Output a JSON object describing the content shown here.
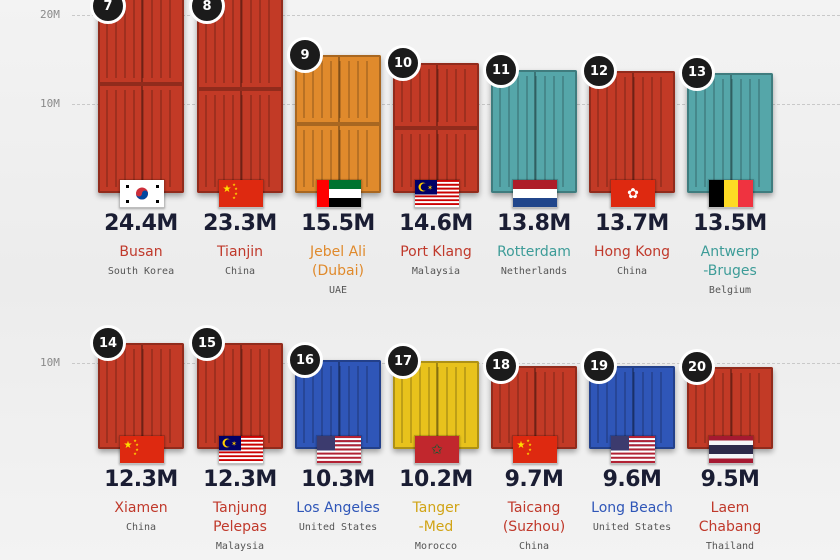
{
  "colors": {
    "red": "#c23a26",
    "orange": "#e08a2c",
    "teal": "#55a6a9",
    "blue": "#2f56b8",
    "yellow": "#e8c21c",
    "text_red": "#c0392b",
    "text_orange": "#e08a2c",
    "text_teal": "#3d9c98",
    "text_blue": "#2f56b8",
    "text_yellow": "#d1a416"
  },
  "chart_data": [
    {
      "type": "bar",
      "unit": "M",
      "ylim": [
        0,
        25
      ],
      "ticks": [
        {
          "value": 20,
          "label": "20M"
        },
        {
          "value": 10,
          "label": "10M"
        }
      ],
      "bars": [
        {
          "rank": "7",
          "value": 24.4,
          "value_label": "24.4M",
          "city": [
            "Busan"
          ],
          "country": "South Korea",
          "flag": "south-korea",
          "color": "red"
        },
        {
          "rank": "8",
          "value": 23.3,
          "value_label": "23.3M",
          "city": [
            "Tianjin"
          ],
          "country": "China",
          "flag": "china",
          "color": "red"
        },
        {
          "rank": "9",
          "value": 15.5,
          "value_label": "15.5M",
          "city": [
            "Jebel Ali",
            "(Dubai)"
          ],
          "country": "UAE",
          "flag": "uae",
          "color": "orange"
        },
        {
          "rank": "10",
          "value": 14.6,
          "value_label": "14.6M",
          "city": [
            "Port Klang"
          ],
          "country": "Malaysia",
          "flag": "malaysia",
          "color": "red"
        },
        {
          "rank": "11",
          "value": 13.8,
          "value_label": "13.8M",
          "city": [
            "Rotterdam"
          ],
          "country": "Netherlands",
          "flag": "netherlands",
          "color": "teal"
        },
        {
          "rank": "12",
          "value": 13.7,
          "value_label": "13.7M",
          "city": [
            "Hong Kong"
          ],
          "country": "China",
          "flag": "hong-kong",
          "color": "red"
        },
        {
          "rank": "13",
          "value": 13.5,
          "value_label": "13.5M",
          "city": [
            "Antwerp",
            "-Bruges"
          ],
          "country": "Belgium",
          "flag": "belgium",
          "color": "teal"
        }
      ]
    },
    {
      "type": "bar",
      "unit": "M",
      "ylim": [
        0,
        25
      ],
      "ticks": [
        {
          "value": 10,
          "label": "10M"
        }
      ],
      "bars": [
        {
          "rank": "14",
          "value": 12.3,
          "value_label": "12.3M",
          "city": [
            "Xiamen"
          ],
          "country": "China",
          "flag": "china",
          "color": "red"
        },
        {
          "rank": "15",
          "value": 12.3,
          "value_label": "12.3M",
          "city": [
            "Tanjung",
            "Pelepas"
          ],
          "country": "Malaysia",
          "flag": "malaysia",
          "color": "red"
        },
        {
          "rank": "16",
          "value": 10.3,
          "value_label": "10.3M",
          "city": [
            "Los Angeles"
          ],
          "country": "United States",
          "flag": "usa",
          "color": "blue"
        },
        {
          "rank": "17",
          "value": 10.2,
          "value_label": "10.2M",
          "city": [
            "Tanger",
            "-Med"
          ],
          "country": "Morocco",
          "flag": "morocco",
          "color": "yellow"
        },
        {
          "rank": "18",
          "value": 9.7,
          "value_label": "9.7M",
          "city": [
            "Taicang",
            "(Suzhou)"
          ],
          "country": "China",
          "flag": "china",
          "color": "red"
        },
        {
          "rank": "19",
          "value": 9.6,
          "value_label": "9.6M",
          "city": [
            "Long Beach"
          ],
          "country": "United States",
          "flag": "usa",
          "color": "blue"
        },
        {
          "rank": "20",
          "value": 9.5,
          "value_label": "9.5M",
          "city": [
            "Laem",
            "Chabang"
          ],
          "country": "Thailand",
          "flag": "thailand",
          "color": "red"
        }
      ]
    }
  ]
}
